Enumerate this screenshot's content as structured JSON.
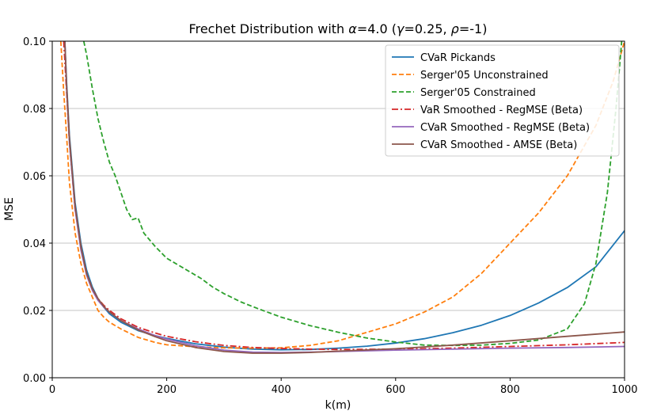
{
  "chart_data": {
    "type": "line",
    "title_parts": {
      "prefix": "Frechet Distribution with ",
      "alpha": "α",
      "alpha_value": "=4.0 (",
      "gamma": "γ",
      "gamma_value": "=0.25, ",
      "rho": "ρ",
      "rho_value": "=-1)"
    },
    "xlabel": "k(m)",
    "ylabel": "MSE",
    "xlim": [
      0,
      1000
    ],
    "ylim": [
      0,
      0.1
    ],
    "xticks": [
      0,
      200,
      400,
      600,
      800,
      1000
    ],
    "yticks": [
      0.0,
      0.02,
      0.04,
      0.06,
      0.08,
      0.1
    ],
    "ytick_labels": [
      "0.00",
      "0.02",
      "0.04",
      "0.06",
      "0.08",
      "0.10"
    ],
    "xtick_labels": [
      "0",
      "200",
      "400",
      "600",
      "800",
      "1000"
    ],
    "grid": "horizontal",
    "legend_position": "top-right",
    "series": [
      {
        "name": "CVaR Pickands",
        "color": "#1f77b4",
        "dash": "solid",
        "points": [
          [
            22,
            0.1
          ],
          [
            25,
            0.088
          ],
          [
            30,
            0.072
          ],
          [
            40,
            0.052
          ],
          [
            50,
            0.04
          ],
          [
            60,
            0.032
          ],
          [
            70,
            0.027
          ],
          [
            80,
            0.0235
          ],
          [
            90,
            0.021
          ],
          [
            100,
            0.019
          ],
          [
            120,
            0.0165
          ],
          [
            150,
            0.014
          ],
          [
            180,
            0.0125
          ],
          [
            200,
            0.0117
          ],
          [
            250,
            0.0101
          ],
          [
            300,
            0.0091
          ],
          [
            350,
            0.0085
          ],
          [
            400,
            0.0083
          ],
          [
            450,
            0.0084
          ],
          [
            500,
            0.0088
          ],
          [
            550,
            0.0094
          ],
          [
            600,
            0.0103
          ],
          [
            650,
            0.0116
          ],
          [
            700,
            0.0134
          ],
          [
            750,
            0.0156
          ],
          [
            800,
            0.0185
          ],
          [
            850,
            0.0222
          ],
          [
            900,
            0.0268
          ],
          [
            950,
            0.033
          ],
          [
            1000,
            0.0437
          ]
        ]
      },
      {
        "name": "Serger'05 Unconstrained",
        "color": "#ff7f0e",
        "dash": "dashed",
        "points": [
          [
            15,
            0.1
          ],
          [
            20,
            0.085
          ],
          [
            25,
            0.072
          ],
          [
            30,
            0.058
          ],
          [
            40,
            0.043
          ],
          [
            50,
            0.034
          ],
          [
            60,
            0.028
          ],
          [
            70,
            0.024
          ],
          [
            80,
            0.02
          ],
          [
            90,
            0.018
          ],
          [
            100,
            0.0165
          ],
          [
            120,
            0.0145
          ],
          [
            150,
            0.012
          ],
          [
            180,
            0.0105
          ],
          [
            200,
            0.0098
          ],
          [
            250,
            0.0092
          ],
          [
            300,
            0.0089
          ],
          [
            350,
            0.0088
          ],
          [
            400,
            0.0089
          ],
          [
            450,
            0.0096
          ],
          [
            500,
            0.011
          ],
          [
            550,
            0.0135
          ],
          [
            600,
            0.016
          ],
          [
            650,
            0.0195
          ],
          [
            700,
            0.024
          ],
          [
            750,
            0.031
          ],
          [
            800,
            0.04
          ],
          [
            850,
            0.049
          ],
          [
            900,
            0.06
          ],
          [
            950,
            0.075
          ],
          [
            980,
            0.088
          ],
          [
            1000,
            0.1
          ]
        ]
      },
      {
        "name": "Serger'05 Constrained",
        "color": "#2ca02c",
        "dash": "dashed",
        "points": [
          [
            55,
            0.1
          ],
          [
            60,
            0.096
          ],
          [
            70,
            0.086
          ],
          [
            80,
            0.077
          ],
          [
            90,
            0.07
          ],
          [
            100,
            0.064
          ],
          [
            110,
            0.06
          ],
          [
            120,
            0.055
          ],
          [
            130,
            0.05
          ],
          [
            140,
            0.047
          ],
          [
            150,
            0.0475
          ],
          [
            160,
            0.043
          ],
          [
            180,
            0.039
          ],
          [
            200,
            0.0355
          ],
          [
            220,
            0.0335
          ],
          [
            240,
            0.0315
          ],
          [
            260,
            0.0295
          ],
          [
            280,
            0.027
          ],
          [
            300,
            0.025
          ],
          [
            330,
            0.0225
          ],
          [
            360,
            0.0205
          ],
          [
            400,
            0.018
          ],
          [
            450,
            0.0155
          ],
          [
            500,
            0.0135
          ],
          [
            550,
            0.0118
          ],
          [
            600,
            0.0106
          ],
          [
            650,
            0.0097
          ],
          [
            700,
            0.0096
          ],
          [
            750,
            0.0097
          ],
          [
            800,
            0.0102
          ],
          [
            850,
            0.0112
          ],
          [
            900,
            0.0145
          ],
          [
            930,
            0.022
          ],
          [
            950,
            0.034
          ],
          [
            970,
            0.055
          ],
          [
            985,
            0.08
          ],
          [
            995,
            0.1
          ]
        ]
      },
      {
        "name": "VaR Smoothed - RegMSE (Beta)",
        "color": "#d62728",
        "dash": "dashdot",
        "points": [
          [
            20,
            0.1
          ],
          [
            25,
            0.085
          ],
          [
            30,
            0.07
          ],
          [
            40,
            0.05
          ],
          [
            50,
            0.039
          ],
          [
            60,
            0.031
          ],
          [
            70,
            0.0265
          ],
          [
            80,
            0.0235
          ],
          [
            90,
            0.0215
          ],
          [
            100,
            0.02
          ],
          [
            120,
            0.0175
          ],
          [
            150,
            0.015
          ],
          [
            180,
            0.0133
          ],
          [
            200,
            0.0123
          ],
          [
            250,
            0.0107
          ],
          [
            300,
            0.0096
          ],
          [
            350,
            0.009
          ],
          [
            400,
            0.0087
          ],
          [
            450,
            0.0085
          ],
          [
            500,
            0.0084
          ],
          [
            600,
            0.0085
          ],
          [
            700,
            0.0088
          ],
          [
            800,
            0.0093
          ],
          [
            900,
            0.0098
          ],
          [
            1000,
            0.0105
          ]
        ]
      },
      {
        "name": "CVaR Smoothed - RegMSE (Beta)",
        "color": "#9467bd",
        "dash": "solid",
        "points": [
          [
            22,
            0.1
          ],
          [
            25,
            0.086
          ],
          [
            30,
            0.07
          ],
          [
            40,
            0.05
          ],
          [
            50,
            0.038
          ],
          [
            60,
            0.0305
          ],
          [
            70,
            0.026
          ],
          [
            80,
            0.023
          ],
          [
            90,
            0.021
          ],
          [
            100,
            0.0195
          ],
          [
            120,
            0.017
          ],
          [
            150,
            0.0145
          ],
          [
            180,
            0.0125
          ],
          [
            200,
            0.0115
          ],
          [
            250,
            0.0095
          ],
          [
            300,
            0.0082
          ],
          [
            350,
            0.0076
          ],
          [
            400,
            0.0075
          ],
          [
            450,
            0.0076
          ],
          [
            500,
            0.0078
          ],
          [
            600,
            0.0082
          ],
          [
            700,
            0.0085
          ],
          [
            800,
            0.0088
          ],
          [
            900,
            0.009
          ],
          [
            1000,
            0.0093
          ]
        ]
      },
      {
        "name": "CVaR Smoothed - AMSE (Beta)",
        "color": "#8c564b",
        "dash": "solid",
        "points": [
          [
            22,
            0.1
          ],
          [
            25,
            0.087
          ],
          [
            30,
            0.071
          ],
          [
            40,
            0.051
          ],
          [
            50,
            0.039
          ],
          [
            60,
            0.031
          ],
          [
            70,
            0.0265
          ],
          [
            80,
            0.0235
          ],
          [
            90,
            0.0212
          ],
          [
            100,
            0.0195
          ],
          [
            120,
            0.017
          ],
          [
            150,
            0.0142
          ],
          [
            180,
            0.0122
          ],
          [
            200,
            0.011
          ],
          [
            250,
            0.009
          ],
          [
            300,
            0.0078
          ],
          [
            350,
            0.0073
          ],
          [
            400,
            0.0073
          ],
          [
            450,
            0.0075
          ],
          [
            500,
            0.0079
          ],
          [
            600,
            0.0086
          ],
          [
            700,
            0.0097
          ],
          [
            800,
            0.011
          ],
          [
            900,
            0.0123
          ],
          [
            1000,
            0.0136
          ]
        ]
      }
    ]
  }
}
